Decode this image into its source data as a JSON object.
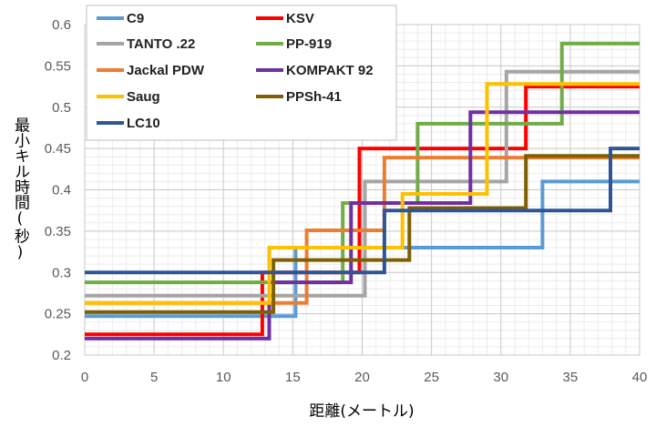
{
  "chart_data": {
    "type": "line",
    "step": true,
    "title": "",
    "xlabel": "距離(メートル)",
    "ylabel": "最小キル時間(秒)",
    "xlim": [
      0,
      40
    ],
    "ylim": [
      0.2,
      0.6
    ],
    "xticks": [
      0,
      5,
      10,
      15,
      20,
      25,
      30,
      35,
      40
    ],
    "yticks": [
      0.2,
      0.25,
      0.3,
      0.35,
      0.4,
      0.45,
      0.5,
      0.55,
      0.6
    ],
    "xtick_labels": [
      "0",
      "5",
      "10",
      "15",
      "20",
      "25",
      "30",
      "35",
      "40"
    ],
    "ytick_labels": [
      "0.2",
      "0.25",
      "0.3",
      "0.35",
      "0.4",
      "0.45",
      "0.5",
      "0.55",
      "0.6"
    ],
    "grid": true,
    "legend_position": "top-left",
    "series": [
      {
        "name": "C9",
        "color": "#5B9BD5",
        "x": [
          0,
          15.2,
          15.2,
          33.0,
          33.0,
          40
        ],
        "y": [
          0.247,
          0.247,
          0.33,
          0.33,
          0.41,
          0.41
        ]
      },
      {
        "name": "KSV",
        "color": "#FF0000",
        "x": [
          0,
          12.8,
          12.8,
          19.8,
          19.8,
          31.8,
          31.8,
          40
        ],
        "y": [
          0.225,
          0.225,
          0.3,
          0.3,
          0.45,
          0.45,
          0.525,
          0.525
        ]
      },
      {
        "name": "TANTO .22",
        "color": "#A5A5A5",
        "x": [
          0,
          20.2,
          20.2,
          30.4,
          30.4,
          40
        ],
        "y": [
          0.272,
          0.272,
          0.41,
          0.41,
          0.543,
          0.543
        ]
      },
      {
        "name": "PP-919",
        "color": "#70AD47",
        "x": [
          0,
          18.6,
          18.6,
          24.0,
          24.0,
          34.4,
          34.4,
          40
        ],
        "y": [
          0.288,
          0.288,
          0.384,
          0.384,
          0.48,
          0.48,
          0.577,
          0.577
        ]
      },
      {
        "name": "Jackal PDW",
        "color": "#ED7D31",
        "x": [
          0,
          16.0,
          16.0,
          21.6,
          21.6,
          40
        ],
        "y": [
          0.263,
          0.263,
          0.351,
          0.351,
          0.439,
          0.439
        ]
      },
      {
        "name": "KOMPAKT 92",
        "color": "#7030A0",
        "x": [
          0,
          13.3,
          13.3,
          19.2,
          19.2,
          27.8,
          27.8,
          40
        ],
        "y": [
          0.22,
          0.22,
          0.288,
          0.288,
          0.384,
          0.384,
          0.494,
          0.494
        ]
      },
      {
        "name": "Saug",
        "color": "#FFC000",
        "x": [
          0,
          13.3,
          13.3,
          22.9,
          22.9,
          29.0,
          29.0,
          40
        ],
        "y": [
          0.263,
          0.263,
          0.33,
          0.33,
          0.395,
          0.395,
          0.528,
          0.528
        ]
      },
      {
        "name": "PPSh-41",
        "color": "#7F6000",
        "x": [
          0,
          13.6,
          13.6,
          23.4,
          23.4,
          31.8,
          31.8,
          40
        ],
        "y": [
          0.252,
          0.252,
          0.315,
          0.315,
          0.378,
          0.378,
          0.441,
          0.441
        ]
      },
      {
        "name": "LC10",
        "color": "#2F5597",
        "x": [
          0,
          21.6,
          21.6,
          37.9,
          37.9,
          40
        ],
        "y": [
          0.3,
          0.3,
          0.375,
          0.375,
          0.45,
          0.45
        ]
      }
    ]
  }
}
